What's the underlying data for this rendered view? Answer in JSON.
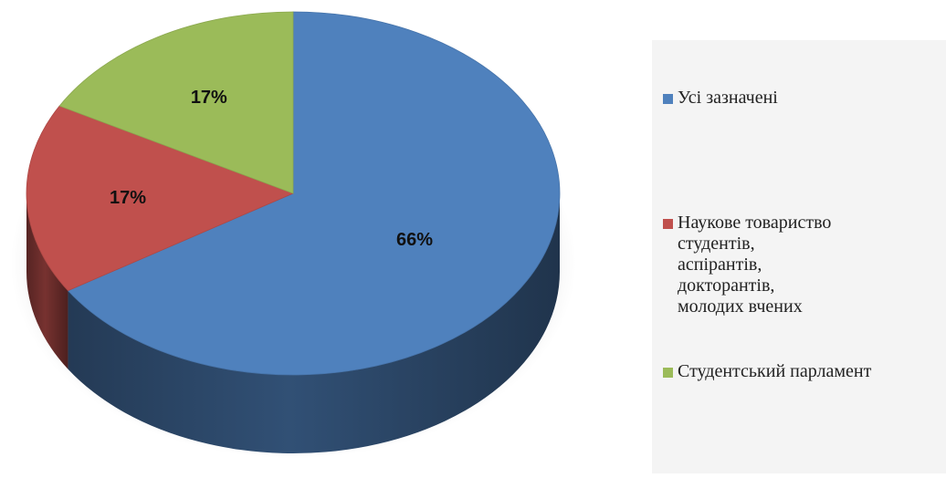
{
  "chart_data": {
    "type": "pie",
    "style": "3d",
    "categories": [
      "Усі зазначені",
      "Наукове товариство студентів, аспірантів, докторантів, молодих вчених",
      "Студентський парламент"
    ],
    "values": [
      66,
      17,
      17
    ],
    "data_labels": [
      "66%",
      "17%",
      "17%"
    ],
    "colors": [
      "#4f81bd",
      "#c0504d",
      "#9bbb59"
    ],
    "legend_position": "right"
  }
}
